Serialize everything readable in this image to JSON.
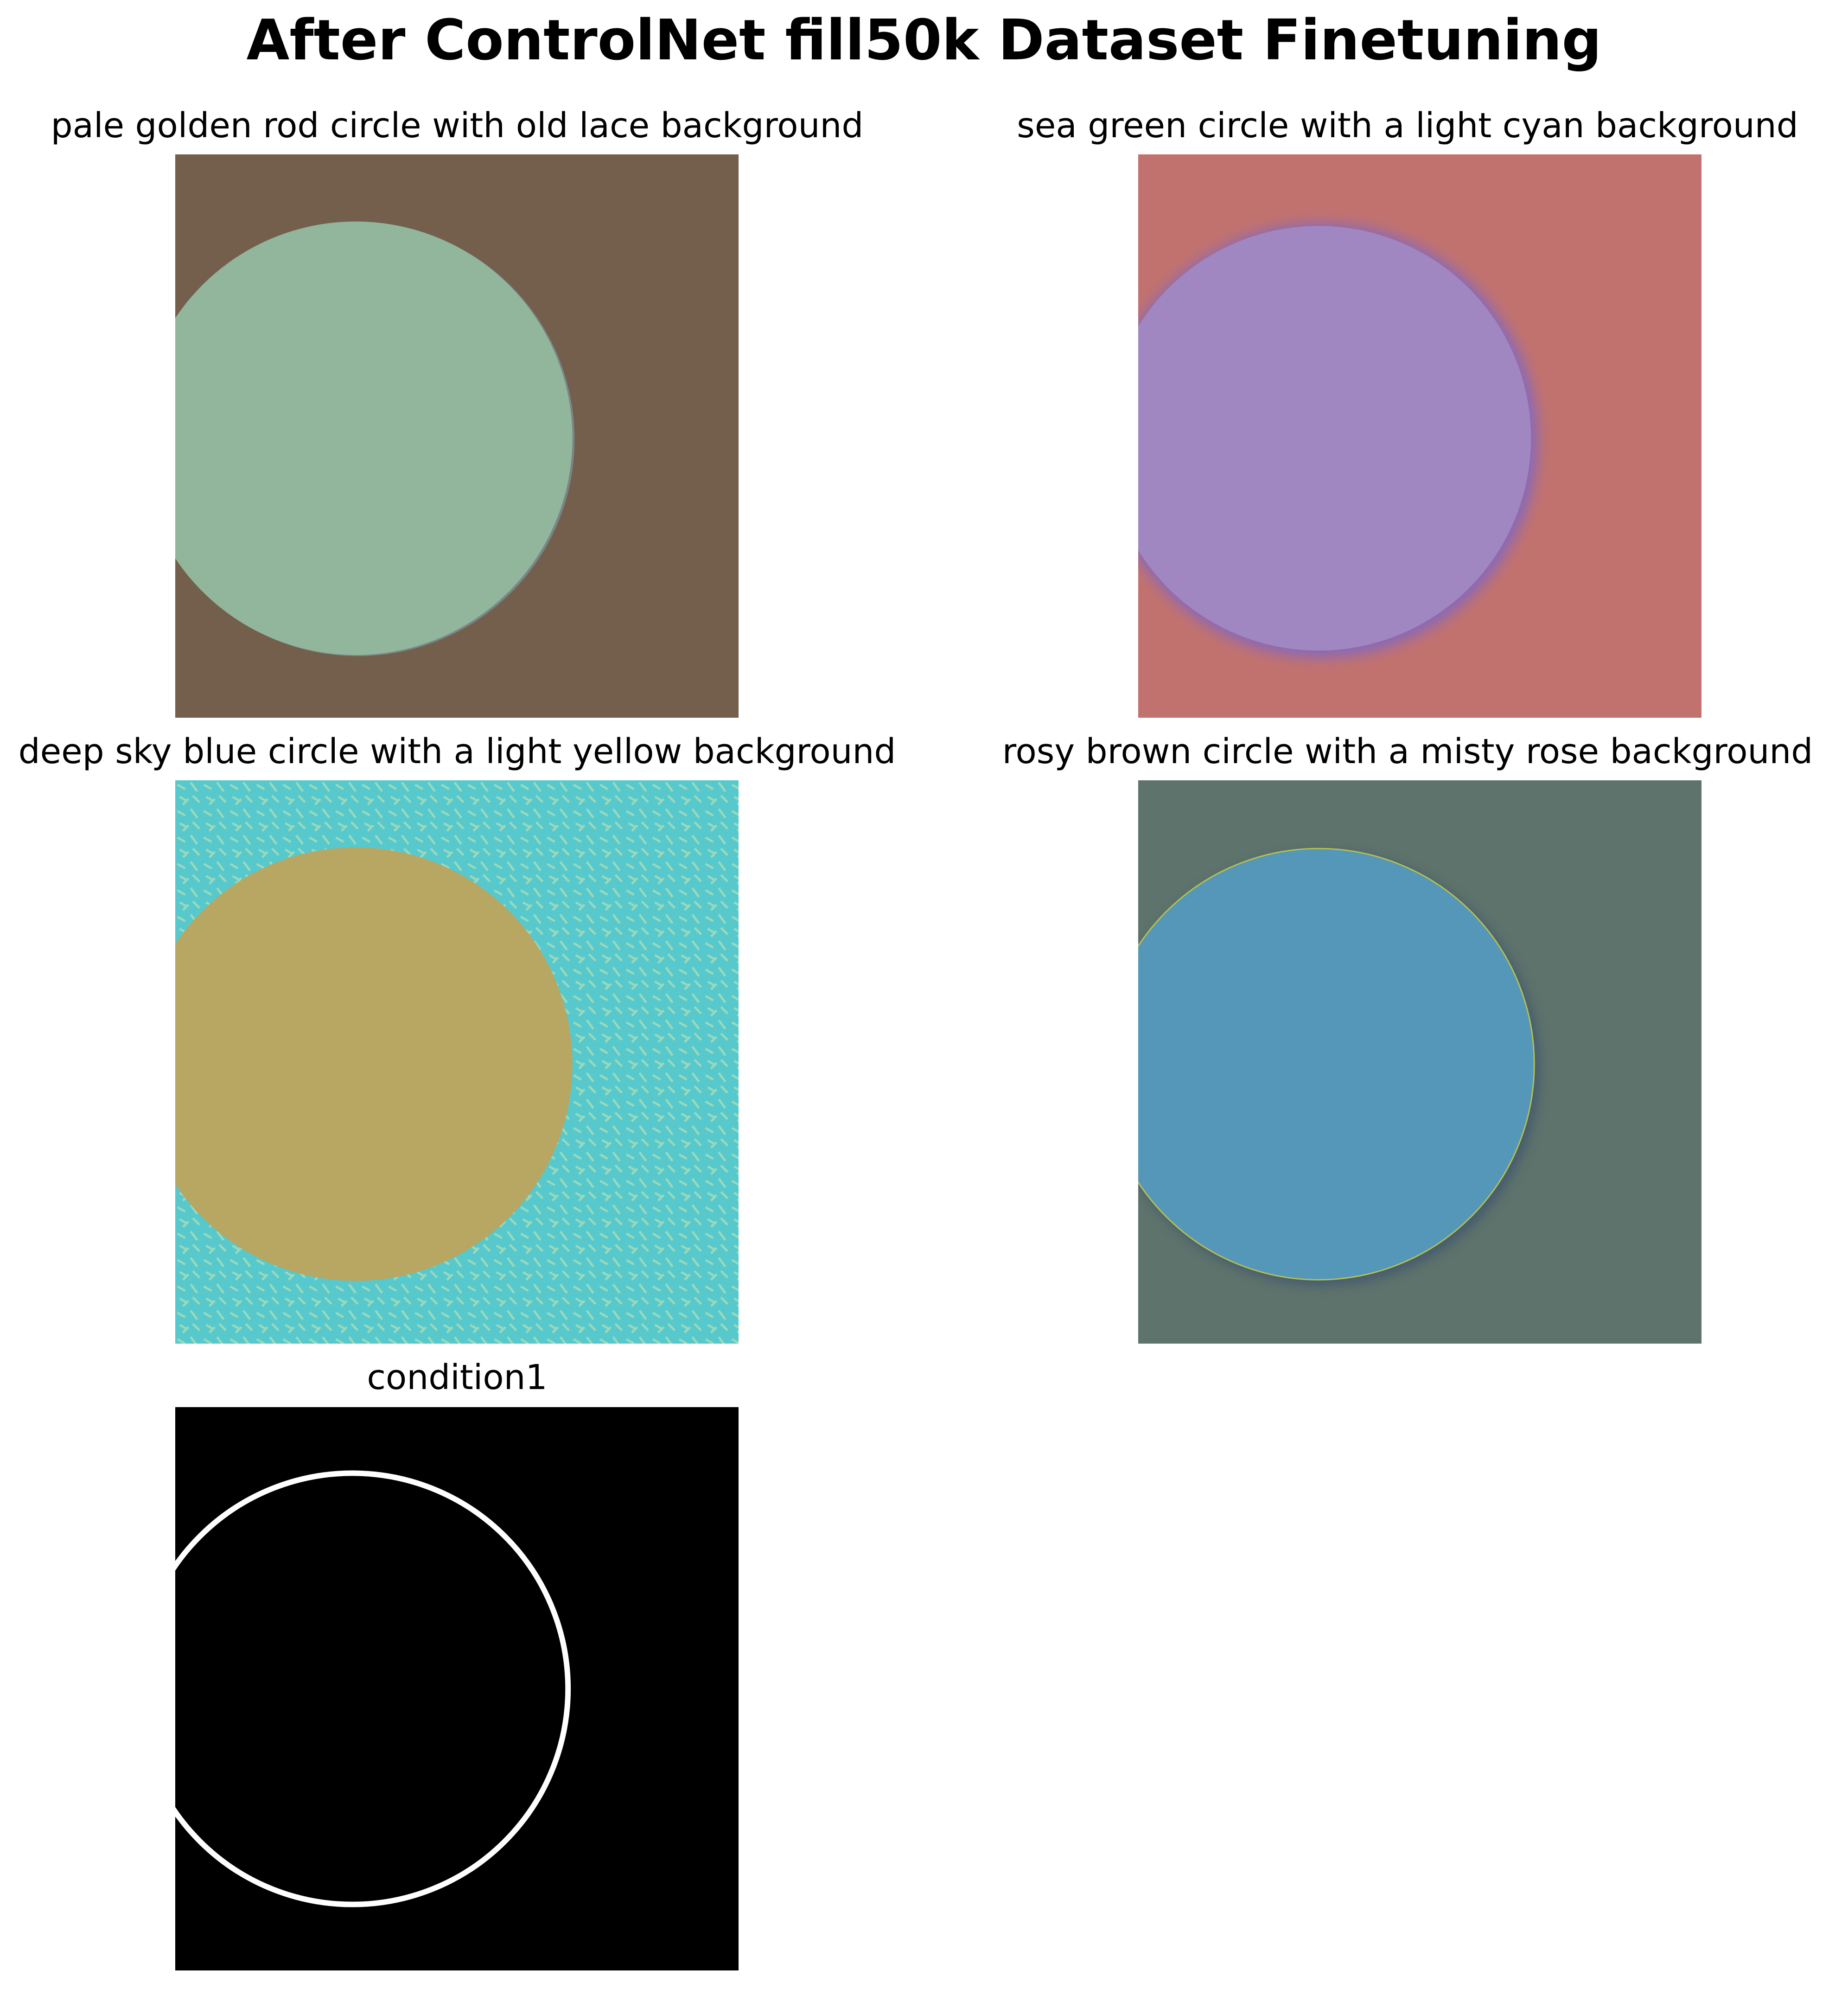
{
  "figure": {
    "title": "After ControlNet fill50k Dataset Finetuning"
  },
  "panels": [
    {
      "caption": "pale golden rod circle with old lace background",
      "background_color": "#735f4b",
      "circle_color": "#91b69c",
      "edge_shade": "#7f9fb0"
    },
    {
      "caption": "sea green circle with a light cyan background",
      "background_color": "#c1726f",
      "circle_color": "#a087c2",
      "edge_shade": "#8068c4"
    },
    {
      "caption": "deep sky blue circle with a light yellow background",
      "background_color": "#57c9cc",
      "circle_color": "#b8a663",
      "texture_color": "#a8dcb8"
    },
    {
      "caption": "rosy brown circle with a misty rose background",
      "background_color": "#5e736b",
      "circle_color": "#5597b8",
      "edge_shade": "#3c5470"
    },
    {
      "caption": "condition1",
      "background_color": "#000000",
      "ring_color": "#ffffff"
    }
  ]
}
